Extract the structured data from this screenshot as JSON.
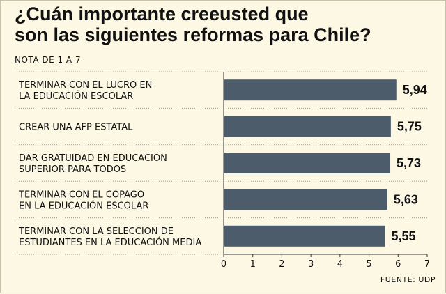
{
  "header": {
    "title_line1": "¿Cuán importante creeusted que",
    "title_line2": "son las siguientes reformas para Chile?",
    "subtitle": "NOTA DE 1 A 7"
  },
  "footer": {
    "source": "FUENTE: UDP"
  },
  "colors": {
    "bar": "#4c5c6b",
    "background": "#fdf8e4",
    "grid": "#9a9a9a"
  },
  "chart_data": {
    "type": "bar",
    "orientation": "horizontal",
    "categories": [
      [
        "TERMINAR CON EL LUCRO EN",
        "LA EDUCACIÓN ESCOLAR"
      ],
      [
        "CREAR UNA AFP ESTATAL"
      ],
      [
        "DAR GRATUIDAD EN EDUCACIÓN",
        "SUPERIOR PARA TODOS"
      ],
      [
        "TERMINAR CON EL COPAGO",
        "EN LA EDUCACIÓN ESCOLAR"
      ],
      [
        "TERMINAR CON LA SELECCIÓN DE",
        "ESTUDIANTES EN LA EDUCACIÓN MEDIA"
      ]
    ],
    "values": [
      5.94,
      5.75,
      5.73,
      5.63,
      5.55
    ],
    "value_labels": [
      "5,94",
      "5,75",
      "5,73",
      "5,63",
      "5,55"
    ],
    "xlim": [
      0,
      7
    ],
    "ticks": [
      "0",
      "1",
      "2",
      "3",
      "4",
      "5",
      "6",
      "7"
    ],
    "grid": "dotted category separators",
    "legend": "none"
  }
}
